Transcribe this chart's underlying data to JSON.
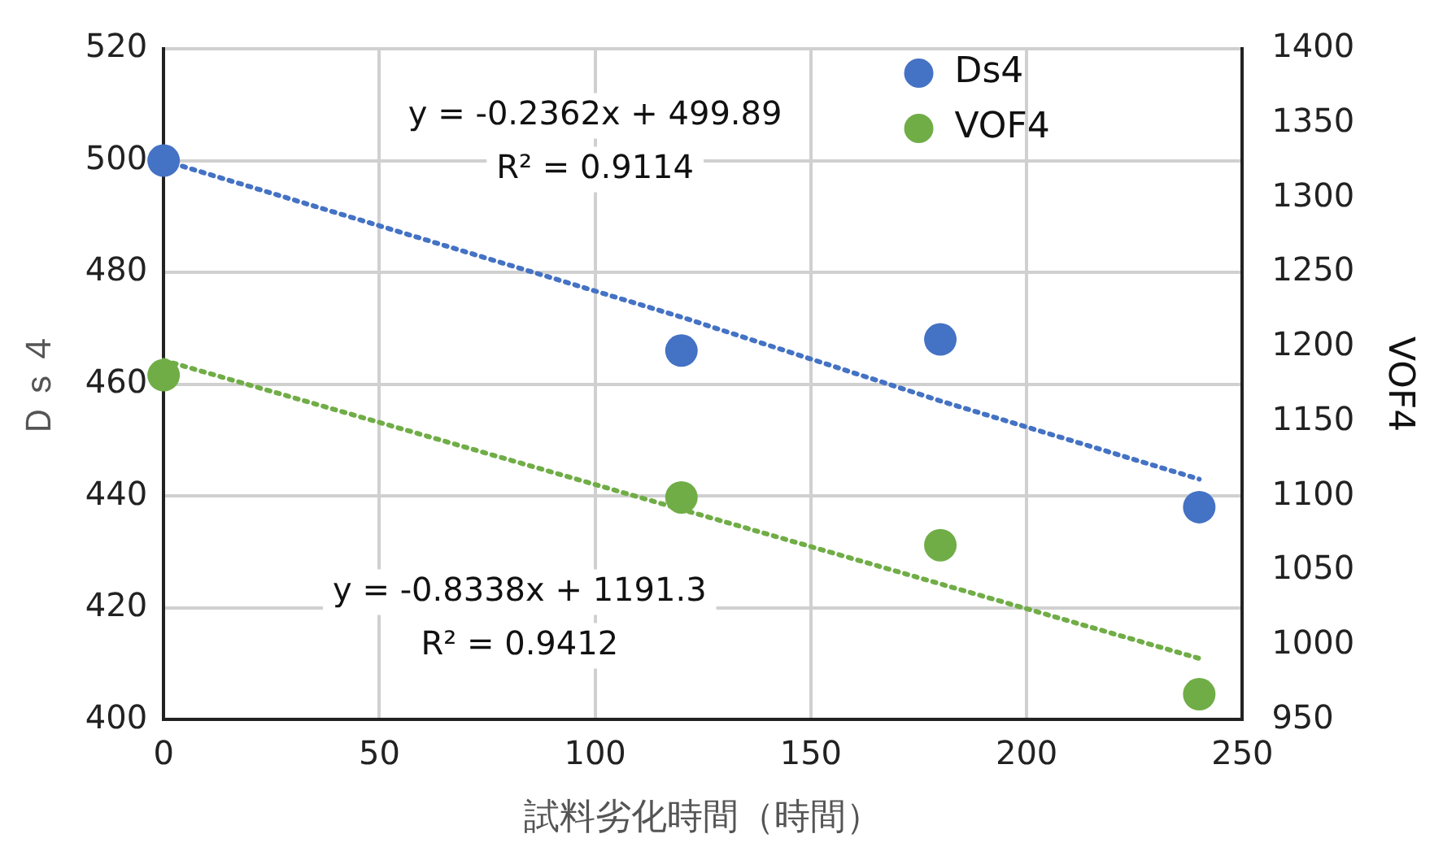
{
  "chart_data": {
    "type": "scatter",
    "xlabel": "試料劣化時間（時間）",
    "ylabel": "Ｄｓ４",
    "y2label": "VOF4",
    "x": [
      0,
      120,
      180,
      240
    ],
    "series": [
      {
        "name": "Ds4",
        "color": "#4472c4",
        "values": [
          500,
          466,
          468,
          438
        ]
      },
      {
        "name": "VOF4",
        "color": "#70ad47",
        "values": [
          1181,
          1099,
          1067,
          967
        ],
        "axis": "y2"
      },
      {
        "type": "line",
        "color": "#4472c4",
        "values": [
          500,
          472,
          457,
          443
        ],
        "line_style": "dotted",
        "marker": "none"
      },
      {
        "type": "line",
        "color": "#70ad47",
        "values": [
          1191,
          1091,
          1041,
          991
        ],
        "line_style": "dotted",
        "marker": "none",
        "axis": "y2"
      }
    ],
    "annotations": [
      "y = -0.2362x + 499.89",
      "R² = 0.9114",
      "y = -0.8338x + 1191.3",
      "R² = 0.9412"
    ],
    "xlim": [
      0,
      250
    ],
    "xticks": [
      0,
      50,
      100,
      150,
      200,
      250
    ],
    "ylim": [
      400,
      520
    ],
    "yticks": [
      400,
      420,
      440,
      460,
      480,
      500,
      520
    ],
    "y2lim": [
      950,
      1400
    ],
    "y2ticks": [
      950,
      1000,
      1050,
      1100,
      1150,
      1200,
      1250,
      1300,
      1350,
      1400
    ],
    "grid": true,
    "legend": "top right",
    "marker": "circle"
  }
}
